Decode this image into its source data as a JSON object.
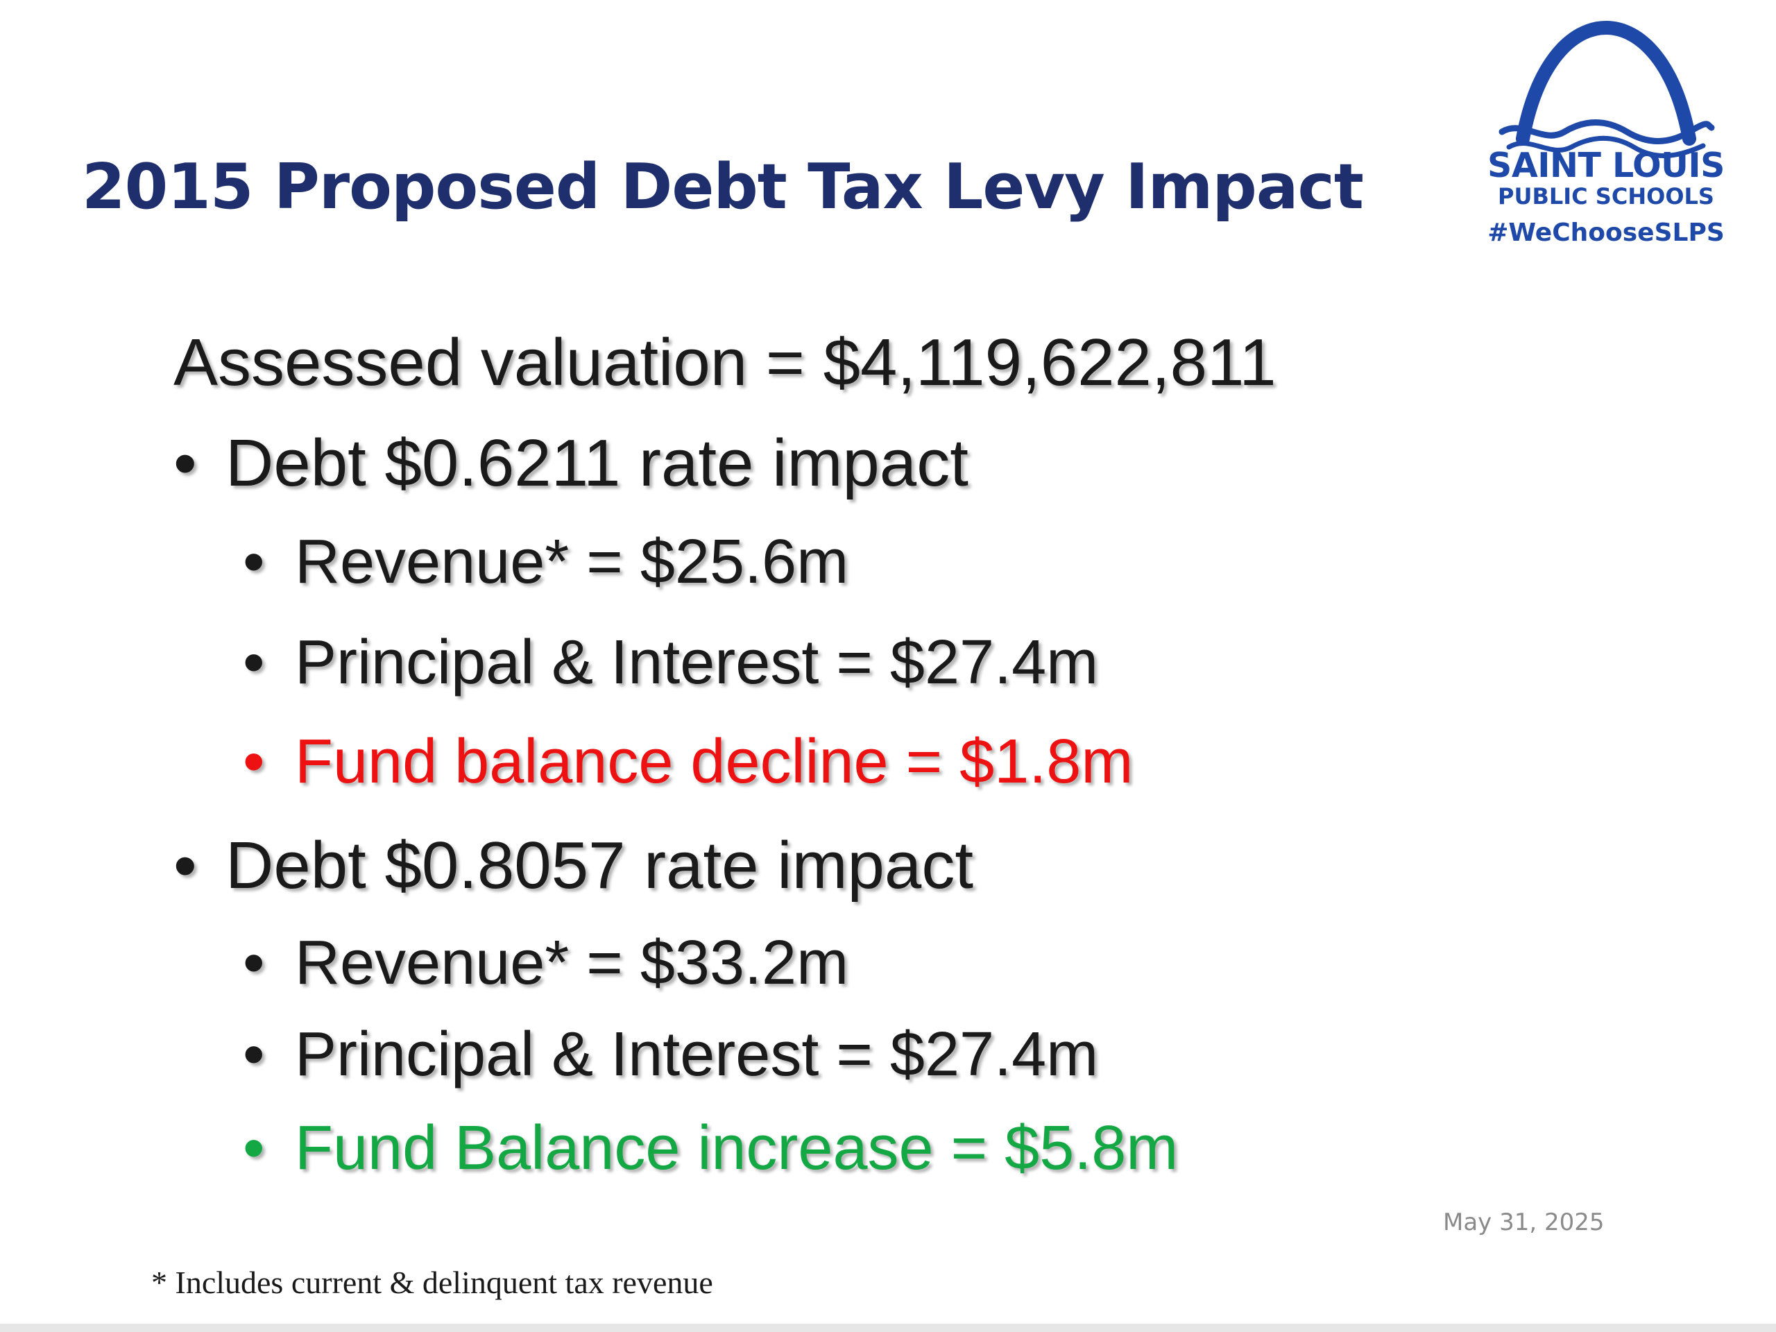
{
  "slide": {
    "title": "2015 Proposed Debt Tax Levy Impact",
    "logo": {
      "line1": "SAINT LOUIS",
      "line2": "PUBLIC SCHOOLS",
      "hashtag": "#WeChooseSLPS",
      "color": "#1e49a8"
    },
    "assessed_valuation": "Assessed valuation = $4,119,622,811",
    "sections": [
      {
        "heading": "Debt $0.6211 rate impact",
        "items": [
          {
            "text": "Revenue* = $25.6m"
          },
          {
            "text": "Principal & Interest = $27.4m"
          },
          {
            "text": "Fund balance decline = $1.8m",
            "color": "#ee1111"
          }
        ]
      },
      {
        "heading": "Debt $0.8057 rate impact",
        "items": [
          {
            "text": "Revenue* = $33.2m"
          },
          {
            "text": "Principal & Interest = $27.4m"
          },
          {
            "text": "Fund Balance increase = $5.8m",
            "color": "#14a845"
          }
        ]
      }
    ],
    "bullet": "•",
    "date": "May 31, 2025",
    "footnote": "* Includes current & delinquent tax revenue"
  }
}
